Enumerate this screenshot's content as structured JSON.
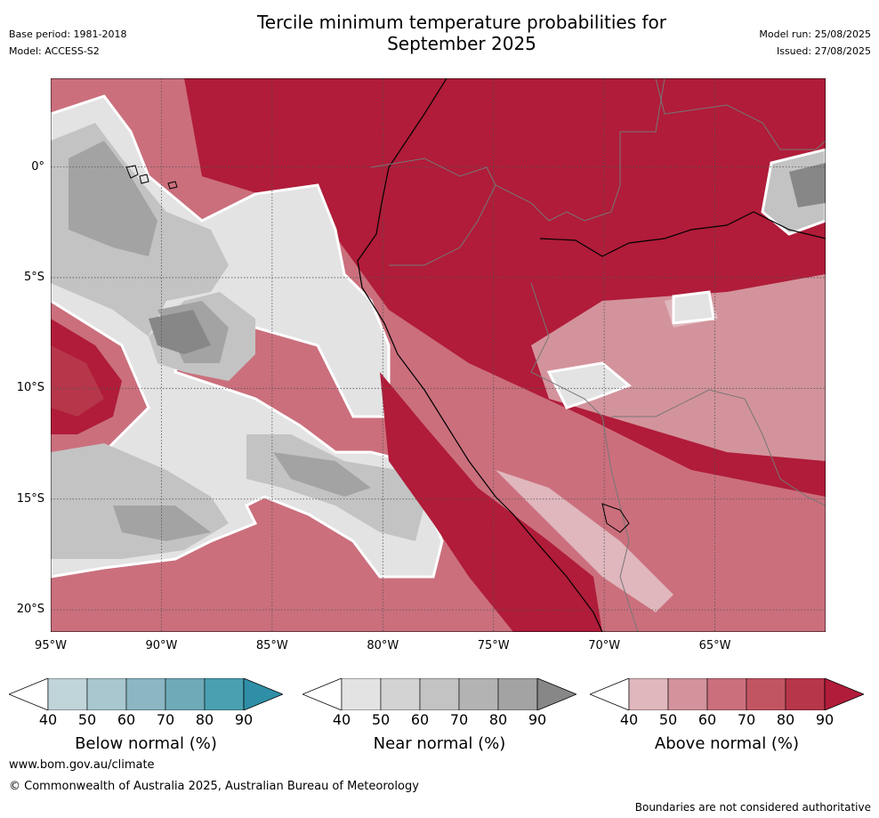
{
  "header": {
    "title_line1": "Tercile minimum temperature probabilities for",
    "title_line2": "September 2025",
    "base_period": "Base period: 1981-2018",
    "model": "Model: ACCESS-S2",
    "model_run": "Model run: 25/08/2025",
    "issued": "Issued: 27/08/2025"
  },
  "map": {
    "y_ticks": [
      "0°",
      "5°S",
      "10°S",
      "15°S",
      "20°S"
    ],
    "x_ticks": [
      "95°W",
      "90°W",
      "85°W",
      "80°W",
      "75°W",
      "70°W",
      "65°W"
    ],
    "lon_range": [
      -95,
      -60
    ],
    "lat_range": [
      -21,
      4
    ],
    "colors": {
      "above": [
        "#dfb7bc",
        "#d3939c",
        "#cb6f7d",
        "#c25562",
        "#b7364a",
        "#b01c39"
      ],
      "near": [
        "#e3e3e3",
        "#d3d3d3",
        "#c3c3c3",
        "#b3b3b3",
        "#a3a3a3",
        "#878787"
      ],
      "below": [
        "#bfd5da",
        "#a8c7ce",
        "#8bb6c2",
        "#6eaab8",
        "#4aa0b1",
        "#2f8fa6"
      ]
    }
  },
  "legends": [
    {
      "id": "below",
      "title": "Below normal (%)",
      "labels": [
        "40",
        "50",
        "60",
        "70",
        "80",
        "90"
      ],
      "colors": [
        "#bfd5da",
        "#a8c7ce",
        "#8bb6c2",
        "#6eaab8",
        "#4aa0b1",
        "#2f8fa6"
      ]
    },
    {
      "id": "near",
      "title": "Near normal (%)",
      "labels": [
        "40",
        "50",
        "60",
        "70",
        "80",
        "90"
      ],
      "colors": [
        "#e3e3e3",
        "#d3d3d3",
        "#c3c3c3",
        "#b3b3b3",
        "#a3a3a3",
        "#878787"
      ]
    },
    {
      "id": "above",
      "title": "Above normal (%)",
      "labels": [
        "40",
        "50",
        "60",
        "70",
        "80",
        "90"
      ],
      "colors": [
        "#dfb7bc",
        "#d3939c",
        "#cb6f7d",
        "#c25562",
        "#b7364a",
        "#b01c39"
      ]
    }
  ],
  "footer": {
    "url": "www.bom.gov.au/climate",
    "copyright": "© Commonwealth of Australia 2025, Australian Bureau of Meteorology",
    "disclaimer": "Boundaries are not considered authoritative"
  }
}
